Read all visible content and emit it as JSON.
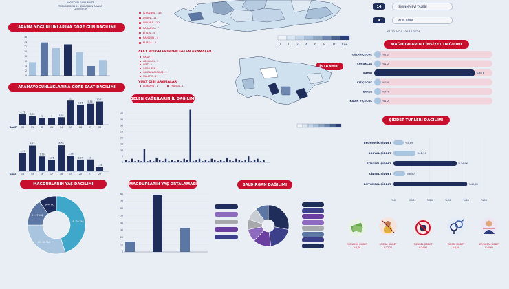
{
  "header": {
    "note_line1": "2007'DEN GÜNÜMÜZE",
    "note_line2": "TÜRKİYE'DEN 30 BİNİ AŞKIN ARAMA",
    "note_line3": "GELMİŞTİR",
    "date_range": "01.10.2024 - 01.11.2024"
  },
  "sections": {
    "calls_by_day": "ARAMA YOĞUNLUKLARINA GÖRE GÜN DAĞILIMI",
    "calls_by_hour": "ARAMAYOĞUNLUKLARINA GÖRE SAAT DAĞILIMI",
    "calls_by_province": "GELEN ÇAĞRILARIN İL DAĞILIMI",
    "victim_age": "MAĞDURLARIN YAŞ DAĞILIMI",
    "victim_age_avg": "MAĞDURLARIN YAŞ ORTALAMASI",
    "perpetrator": "SALDIRGAN DAĞILIMI",
    "istanbul": "İSTANBUL",
    "victim_gender": "MAĞDURLARIN CİNSİYET DAĞILIMI",
    "violence_type": "ŞİDDET TÜRLERİ DAĞILIMI"
  },
  "province_list": [
    "İSTANBUL - 43",
    "AYDIN - 11",
    "ANKARA - 10",
    "SAKARYA - 7",
    "BİTLİS - 5",
    "SAMSUN - 4",
    "BURSA - 3"
  ],
  "disaster": {
    "heading": "AFET BÖLGELERİNDEN GELEN ARAMALAR",
    "items": [
      "HATAY - 1",
      "ADIYAMAN - 1",
      "SİİRT - 1",
      "ŞANLIURFA - 1",
      "KAHRAMANMARAŞ - 1",
      "MALATYA - 1"
    ]
  },
  "abroad": {
    "heading": "YURT DIŞI ARAMALAR",
    "items": [
      "ALMANYA - 1",
      "FRANSA - 1"
    ]
  },
  "stats": [
    {
      "value": "14",
      "label": "SIĞINMA EVİ TALEBİ"
    },
    {
      "value": "4",
      "label": "ACİL VAKA"
    }
  ],
  "map_legend": {
    "turkey_ticks": [
      "0",
      "1",
      "2",
      "4",
      "6",
      "8",
      "10",
      "12+"
    ]
  },
  "colors": {
    "accent_red": "#c8102e",
    "navy": "#1f2d5a",
    "mid_blue": "#5c77a3",
    "light_blue": "#a8c4df",
    "pale_pink": "#f2d4dc",
    "background": "#e9eef5",
    "teal": "#3fa7c9"
  },
  "violence_icons": [
    {
      "icon": "money-icon",
      "label": "EKONOMİK ŞİDDET",
      "pct": "%5,69"
    },
    {
      "icon": "silenced-person-icon",
      "label": "SOSYAL ŞİDDET",
      "pct": "%12,20"
    },
    {
      "icon": "no-fist-icon",
      "label": "FİZİKSEL ŞİDDET",
      "pct": "%34,96"
    },
    {
      "icon": "gender-symbols-icon",
      "label": "CİNSEL ŞİDDET",
      "pct": "%6,50"
    },
    {
      "icon": "distressed-woman-icon",
      "label": "DUYGUSAL ŞİDDET",
      "pct": "%40,65"
    }
  ],
  "chart_data": [
    {
      "id": "day",
      "type": "bar",
      "categories": [
        "",
        "",
        "",
        "",
        "",
        "",
        ""
      ],
      "values": [
        5.6,
        13.8,
        11.4,
        13.0,
        9.7,
        4.0,
        6.5
      ],
      "labels": [
        "",
        "",
        "",
        "",
        "",
        "",
        ""
      ],
      "ylim": [
        0,
        16
      ],
      "colors": [
        "#a8c4df",
        "#5c77a3",
        "#a8c4df",
        "#1f2d5a",
        "#a8c4df",
        "#5c77a3",
        "#a8c4df"
      ]
    },
    {
      "id": "hour1",
      "type": "bar",
      "xlabel": "SAAT",
      "categories": [
        "00",
        "01",
        "02",
        "03",
        "04",
        "05",
        "06",
        "07",
        "08"
      ],
      "values": [
        4.72,
        3.99,
        3.0,
        3.0,
        3.38,
        11.0,
        9.16,
        9.56,
        10.57
      ],
      "ylim": [
        0,
        12
      ]
    },
    {
      "id": "hour2",
      "type": "bar",
      "xlabel": "SAAT",
      "categories": [
        "14",
        "15",
        "16",
        "17",
        "18",
        "19",
        "20",
        "21",
        "22"
      ],
      "values": [
        4.57,
        6.52,
        3.79,
        2.96,
        6.59,
        3.98,
        2.97,
        3.0,
        1.16
      ],
      "ylim": [
        0,
        8
      ]
    },
    {
      "id": "province",
      "type": "bar",
      "yticks": [
        0,
        5,
        10,
        15,
        20,
        25,
        30,
        35,
        40
      ],
      "values": [
        2,
        1,
        3,
        1,
        2,
        1,
        11,
        1,
        2,
        1,
        4,
        2,
        1,
        3,
        1,
        2,
        1,
        2,
        1,
        3,
        2,
        43,
        1,
        2,
        3,
        1,
        2,
        1,
        3,
        2,
        1,
        2,
        1,
        4,
        2,
        1,
        3,
        2,
        1,
        2,
        5,
        1,
        2,
        3,
        1,
        2
      ],
      "ylim": [
        0,
        45
      ]
    },
    {
      "id": "age",
      "type": "pie",
      "slices": [
        {
          "label": "18 - 39 YAŞ",
          "value": 45,
          "color": "#3fa7c9"
        },
        {
          "label": "40 - 59 YAŞ",
          "value": 30,
          "color": "#a8c4df"
        },
        {
          "label": "0 - 17 YAŞ",
          "value": 15,
          "color": "#5c77a3"
        },
        {
          "label": "60+ YAŞ",
          "value": 10,
          "color": "#1f2d5a"
        }
      ]
    },
    {
      "id": "age_avg",
      "type": "bar",
      "yticks": [
        0,
        10,
        20,
        30,
        40,
        50,
        60,
        70,
        80
      ],
      "values": [
        14,
        79,
        33
      ],
      "ylim": [
        0,
        80
      ]
    },
    {
      "id": "perpetrator",
      "type": "pie",
      "slices": [
        {
          "value": 28,
          "color": "#1f2d5a"
        },
        {
          "value": 20,
          "color": "#3c3f8a"
        },
        {
          "value": 14,
          "color": "#6a3fa0"
        },
        {
          "value": 10,
          "color": "#8e6bbf"
        },
        {
          "value": 8,
          "color": "#a7a9ad"
        },
        {
          "value": 10,
          "color": "#c8ccd3"
        },
        {
          "value": 10,
          "color": "#5c77a3"
        }
      ],
      "chips_left": [
        "#1f2d5a",
        "#8e6bbf",
        "#a7a9ad",
        "#6a3fa0",
        "#3c3f8a"
      ],
      "chips_right": [
        "#1f2d5a",
        "#3c3f8a",
        "#6a3fa0",
        "#8e6bbf",
        "#a7a9ad",
        "#5c77a3",
        "#3c3f8a",
        "#1f2d5a"
      ]
    },
    {
      "id": "gender",
      "type": "bar",
      "orientation": "horizontal",
      "categories": [
        "OĞLAN ÇOCUK",
        "ÇOCUKLAR",
        "KADIN",
        "KIZ ÇOCUK",
        "ERKEK",
        "KADIN + ÇOCUK"
      ],
      "values": [
        1.2,
        1.2,
        80.6,
        2.4,
        4.4,
        1.2
      ],
      "labels": [
        "%1,2",
        "%1,2",
        "%80,6",
        "%2,4",
        "%4,4",
        "%1,2"
      ],
      "xlim": [
        0,
        100
      ]
    },
    {
      "id": "violence",
      "type": "bar",
      "orientation": "horizontal",
      "categories": [
        "EKONOMİK ŞİDDET",
        "SOSYAL ŞİDDET",
        "FİZİKSEL ŞİDDET",
        "CİNSEL ŞİDDET",
        "DUYGUSAL ŞİDDET"
      ],
      "values": [
        5.69,
        12.2,
        34.96,
        6.5,
        40.65
      ],
      "labels": [
        "%5,69",
        "%12,20",
        "%34,96",
        "%6,50",
        "%40,65"
      ],
      "xticks": [
        "%0",
        "%10",
        "%20",
        "%30",
        "%40",
        "%50"
      ],
      "xlim": [
        0,
        50
      ]
    }
  ]
}
